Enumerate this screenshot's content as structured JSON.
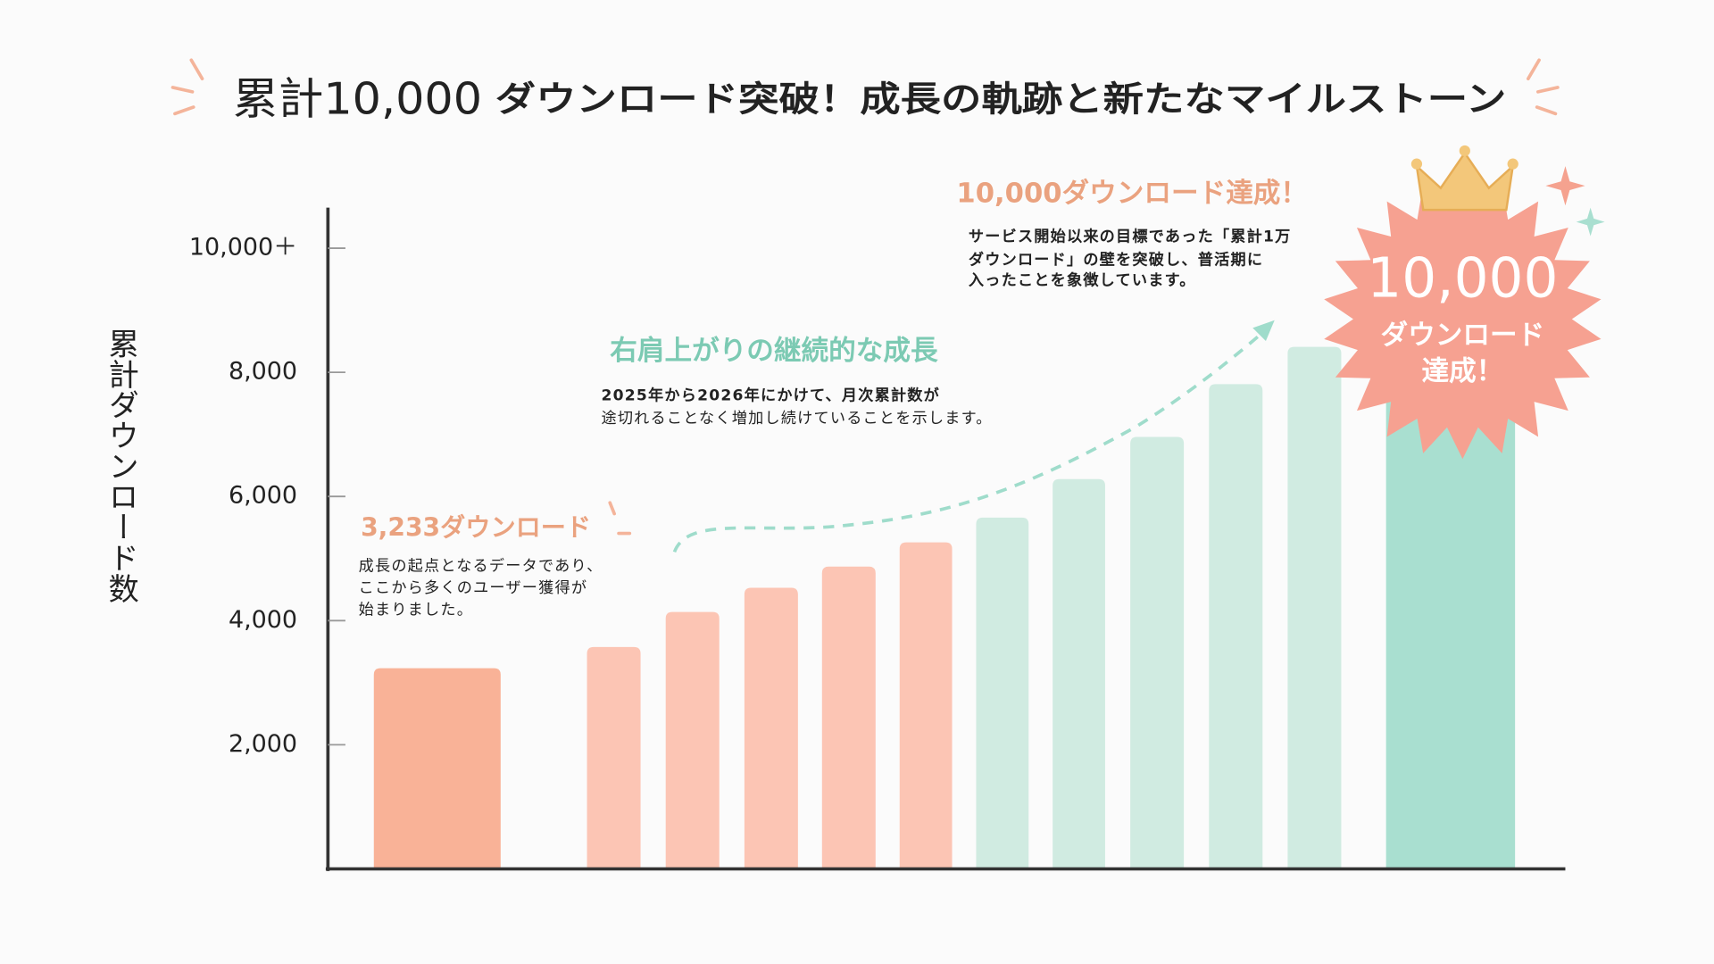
{
  "chart_data": {
    "type": "bar",
    "title_highlight": "累計10,000",
    "title": "ダウンロード突破！成長の軌跡と新たなマイルストーン",
    "y_label": "累計ダウンロード数",
    "categories": [
      null,
      null,
      null,
      null,
      null,
      null,
      null,
      null,
      null,
      null,
      null,
      null
    ],
    "values": [
      3233,
      3575,
      4140,
      4530,
      4870,
      5260,
      5660,
      6280,
      6960,
      7810,
      8410,
      10000
    ],
    "colors": [
      "#f9b297",
      "#fcc5b4",
      "#fcc5b4",
      "#fcc5b4",
      "#fcc5b4",
      "#fcc5b4",
      "#d0ebe1",
      "#d0ebe1",
      "#d0ebe1",
      "#d0ebe1",
      "#d0ebe1",
      "#a9dfd0"
    ],
    "ylim": [
      0,
      10600
    ],
    "yticks": [
      {
        "value": 2000,
        "label": "2,000"
      },
      {
        "value": 4000,
        "label": "4,000"
      },
      {
        "value": 6000,
        "label": "6,000"
      },
      {
        "value": 8000,
        "label": "8,000"
      },
      {
        "value": 10000,
        "label": "10,000＋"
      }
    ],
    "annotations": [
      {
        "title": "3,233ダウンロード",
        "lines": [
          "成長の起点となるデータであり、",
          "ここから多くのユーザー獲得が",
          "始まりました。"
        ]
      },
      {
        "title": "右肩上がりの継続的な成長",
        "lines": [
          "2025年から2026年にかけて、月次累計数が",
          "途切れることなく増加し続けていることを示します。"
        ]
      },
      {
        "title": "10,000ダウンロード達成！",
        "lines": [
          "サービス開始以来の目標であった「累計1万",
          "ダウンロード」の壁を突破し、普活期に",
          "入ったことを象徴しています。"
        ]
      }
    ],
    "badge": {
      "number": "10,000",
      "lines": [
        "ダウンロード",
        "達成！"
      ]
    }
  }
}
